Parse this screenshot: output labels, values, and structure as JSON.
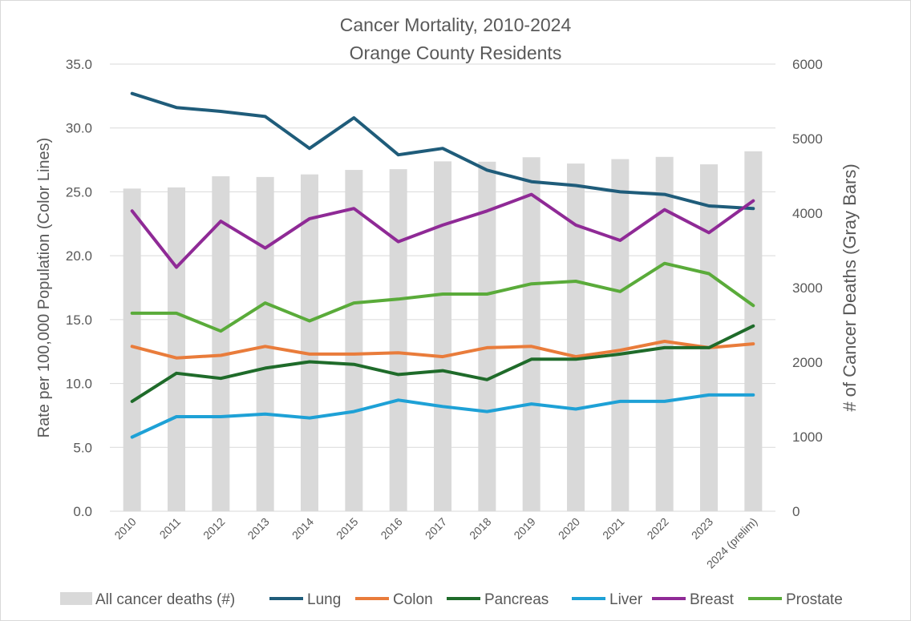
{
  "chart_data": {
    "type": "bar+line",
    "title": "Cancer Mortality, 2010-2024",
    "subtitle": "Orange County Residents",
    "categories": [
      "2010",
      "2011",
      "2012",
      "2013",
      "2014",
      "2015",
      "2016",
      "2017",
      "2018",
      "2019",
      "2020",
      "2021",
      "2022",
      "2023",
      "2024 (prelim)"
    ],
    "bar_series": {
      "name": "All cancer deaths (#)",
      "axis": "right",
      "color": "#d9d9d9",
      "values": [
        4330,
        4345,
        4495,
        4485,
        4520,
        4580,
        4590,
        4695,
        4690,
        4750,
        4665,
        4725,
        4755,
        4655,
        4830
      ]
    },
    "line_series": [
      {
        "name": "Lung",
        "color": "#1f5c7a",
        "values": [
          32.7,
          31.6,
          31.3,
          30.9,
          28.4,
          30.8,
          27.9,
          28.4,
          26.7,
          25.8,
          25.5,
          25.0,
          24.8,
          23.9,
          23.7
        ]
      },
      {
        "name": "Colon",
        "color": "#e97c3b",
        "values": [
          12.9,
          12.0,
          12.2,
          12.9,
          12.3,
          12.3,
          12.4,
          12.1,
          12.8,
          12.9,
          12.1,
          12.6,
          13.3,
          12.8,
          13.1
        ]
      },
      {
        "name": "Pancreas",
        "color": "#1f6b2a",
        "values": [
          8.6,
          10.8,
          10.4,
          11.2,
          11.7,
          11.5,
          10.7,
          11.0,
          10.3,
          11.9,
          11.9,
          12.3,
          12.8,
          12.8,
          14.5
        ]
      },
      {
        "name": "Liver",
        "color": "#1ea1d6",
        "values": [
          5.8,
          7.4,
          7.4,
          7.6,
          7.3,
          7.8,
          8.7,
          8.2,
          7.8,
          8.4,
          8.0,
          8.6,
          8.6,
          9.1,
          9.1
        ]
      },
      {
        "name": "Breast",
        "color": "#8f2a96",
        "values": [
          23.5,
          19.1,
          22.7,
          20.6,
          22.9,
          23.7,
          21.1,
          22.4,
          23.5,
          24.8,
          22.4,
          21.2,
          23.6,
          21.8,
          24.3
        ]
      },
      {
        "name": "Prostate",
        "color": "#5aab3a",
        "values": [
          15.5,
          15.5,
          14.1,
          16.3,
          14.9,
          16.3,
          16.6,
          17.0,
          17.0,
          17.8,
          18.0,
          17.2,
          19.4,
          18.6,
          16.1
        ]
      }
    ],
    "left_axis": {
      "label": "Rate per 100,000 Population (Color Lines)",
      "ylim": [
        0,
        35
      ],
      "ticks": [
        "0.0",
        "5.0",
        "10.0",
        "15.0",
        "20.0",
        "25.0",
        "30.0",
        "35.0"
      ]
    },
    "right_axis": {
      "label": "# of Cancer Deaths (Gray Bars)",
      "ylim": [
        0,
        6000
      ],
      "ticks": [
        "0",
        "1000",
        "2000",
        "3000",
        "4000",
        "5000",
        "6000"
      ]
    },
    "grid": true,
    "legend_position": "bottom",
    "legend": [
      "All cancer deaths (#)",
      "Lung",
      "Colon",
      "Pancreas",
      "Liver",
      "Breast",
      "Prostate"
    ]
  }
}
